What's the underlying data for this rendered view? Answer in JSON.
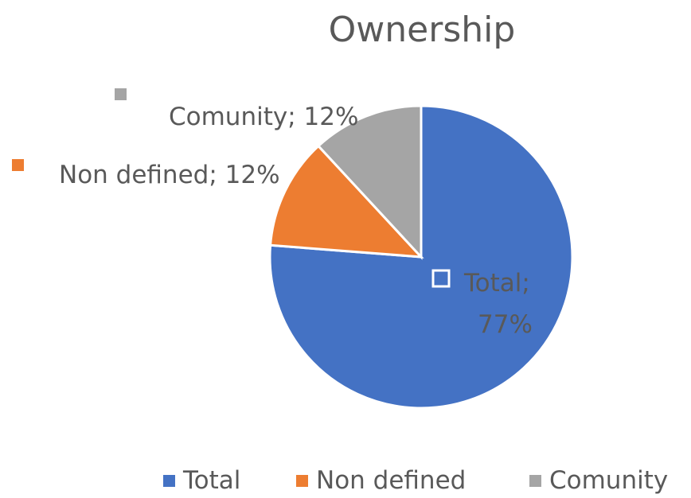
{
  "chart_data": {
    "type": "pie",
    "title": "Ownership",
    "categories": [
      "Total",
      "Non defined",
      "Comunity"
    ],
    "values": [
      77,
      12,
      12
    ],
    "colors": [
      "#4472C4",
      "#ED7D31",
      "#A5A5A5"
    ],
    "data_labels": [
      "Total; 77%",
      "Non defined; 12%",
      "Comunity; 12%"
    ],
    "start_angle": "12 o'clock",
    "direction": "clockwise",
    "legend_position": "bottom"
  }
}
